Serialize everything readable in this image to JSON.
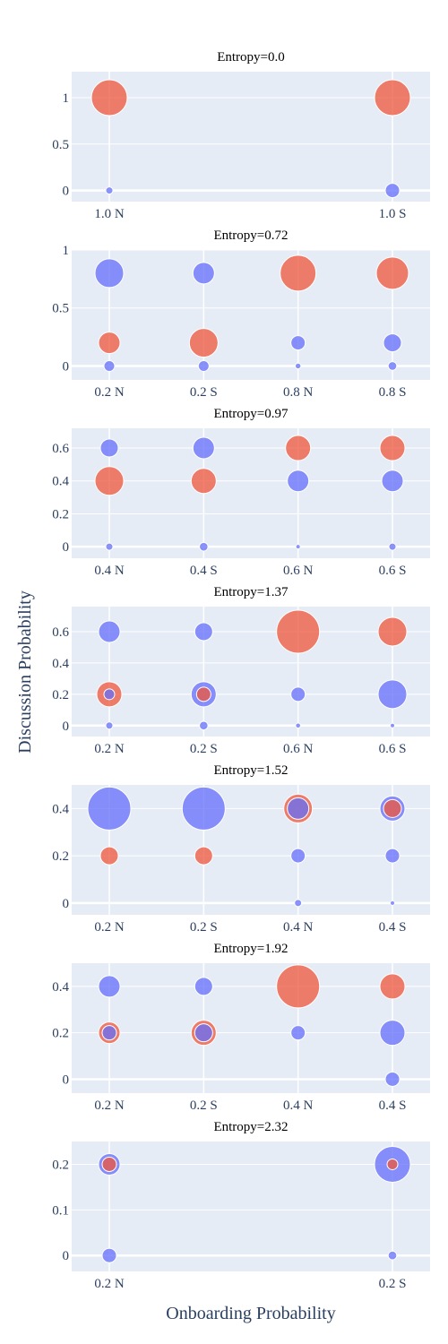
{
  "chart_data": {
    "type": "scatter",
    "xlabel": "Onboarding Probability",
    "ylabel": "Discussion Probability",
    "colors": {
      "blue": "#636efa",
      "red": "#ef553b",
      "plot_bg": "#e5ecf6",
      "grid": "#ffffff"
    },
    "grid": true,
    "legend": "none",
    "panels": [
      {
        "title": "Entropy=0.0",
        "categories": [
          "1.0 N",
          "1.0 S"
        ],
        "y_ticks": [
          "0",
          "0.5",
          "1"
        ],
        "y_tick_values": [
          0,
          0.5,
          1
        ],
        "ylim": [
          -0.12,
          1.28
        ],
        "points": [
          {
            "x": "1.0 N",
            "y": 1,
            "size": 5,
            "color": "red"
          },
          {
            "x": "1.0 N",
            "y": 0,
            "size": 1,
            "color": "blue"
          },
          {
            "x": "1.0 S",
            "y": 1,
            "size": 5,
            "color": "red"
          },
          {
            "x": "1.0 S",
            "y": 0,
            "size": 2,
            "color": "blue"
          }
        ]
      },
      {
        "title": "Entropy=0.72",
        "categories": [
          "0.2 N",
          "0.2 S",
          "0.8 N",
          "0.8 S"
        ],
        "y_ticks": [
          "0",
          "0.5",
          "1"
        ],
        "y_tick_values": [
          0,
          0.5,
          1
        ],
        "ylim": [
          -0.12,
          1.0
        ],
        "points": [
          {
            "x": "0.2 N",
            "y": 0.8,
            "size": 4,
            "color": "blue"
          },
          {
            "x": "0.2 N",
            "y": 0.2,
            "size": 3,
            "color": "red"
          },
          {
            "x": "0.2 N",
            "y": 0,
            "size": 1.5,
            "color": "blue"
          },
          {
            "x": "0.2 S",
            "y": 0.8,
            "size": 3,
            "color": "blue"
          },
          {
            "x": "0.2 S",
            "y": 0.2,
            "size": 4,
            "color": "red"
          },
          {
            "x": "0.2 S",
            "y": 0,
            "size": 1.5,
            "color": "blue"
          },
          {
            "x": "0.8 N",
            "y": 0.8,
            "size": 5,
            "color": "red"
          },
          {
            "x": "0.8 N",
            "y": 0.2,
            "size": 2,
            "color": "blue"
          },
          {
            "x": "0.8 N",
            "y": 0,
            "size": 0.8,
            "color": "blue"
          },
          {
            "x": "0.8 S",
            "y": 0.8,
            "size": 4.5,
            "color": "red"
          },
          {
            "x": "0.8 S",
            "y": 0.2,
            "size": 2.5,
            "color": "blue"
          },
          {
            "x": "0.8 S",
            "y": 0,
            "size": 1.2,
            "color": "blue"
          }
        ]
      },
      {
        "title": "Entropy=0.97",
        "categories": [
          "0.4 N",
          "0.4 S",
          "0.6 N",
          "0.6 S"
        ],
        "y_ticks": [
          "0",
          "0.2",
          "0.4",
          "0.6"
        ],
        "y_tick_values": [
          0,
          0.2,
          0.4,
          0.6
        ],
        "ylim": [
          -0.07,
          0.72
        ],
        "points": [
          {
            "x": "0.4 N",
            "y": 0.6,
            "size": 2.5,
            "color": "blue"
          },
          {
            "x": "0.4 N",
            "y": 0.4,
            "size": 4,
            "color": "red"
          },
          {
            "x": "0.4 N",
            "y": 0,
            "size": 1,
            "color": "blue"
          },
          {
            "x": "0.4 S",
            "y": 0.6,
            "size": 3,
            "color": "blue"
          },
          {
            "x": "0.4 S",
            "y": 0.4,
            "size": 3.5,
            "color": "red"
          },
          {
            "x": "0.4 S",
            "y": 0,
            "size": 1.2,
            "color": "blue"
          },
          {
            "x": "0.6 N",
            "y": 0.6,
            "size": 3.5,
            "color": "red"
          },
          {
            "x": "0.6 N",
            "y": 0.4,
            "size": 3,
            "color": "blue"
          },
          {
            "x": "0.6 N",
            "y": 0,
            "size": 0.4,
            "color": "blue"
          },
          {
            "x": "0.6 S",
            "y": 0.6,
            "size": 3.5,
            "color": "red"
          },
          {
            "x": "0.6 S",
            "y": 0.4,
            "size": 3,
            "color": "blue"
          },
          {
            "x": "0.6 S",
            "y": 0,
            "size": 1,
            "color": "blue"
          }
        ]
      },
      {
        "title": "Entropy=1.37",
        "categories": [
          "0.2 N",
          "0.2 S",
          "0.6 N",
          "0.6 S"
        ],
        "y_ticks": [
          "0",
          "0.2",
          "0.4",
          "0.6"
        ],
        "y_tick_values": [
          0,
          0.2,
          0.4,
          0.6
        ],
        "ylim": [
          -0.07,
          0.76
        ],
        "points": [
          {
            "x": "0.2 N",
            "y": 0.6,
            "size": 3,
            "color": "blue"
          },
          {
            "x": "0.2 N",
            "y": 0.2,
            "size": 3.5,
            "color": "red"
          },
          {
            "x": "0.2 N",
            "y": 0.2,
            "size": 1.5,
            "color": "blue"
          },
          {
            "x": "0.2 N",
            "y": 0,
            "size": 1,
            "color": "blue"
          },
          {
            "x": "0.2 S",
            "y": 0.6,
            "size": 2.5,
            "color": "blue"
          },
          {
            "x": "0.2 S",
            "y": 0.2,
            "size": 3.5,
            "color": "blue"
          },
          {
            "x": "0.2 S",
            "y": 0.2,
            "size": 2,
            "color": "red"
          },
          {
            "x": "0.2 S",
            "y": 0,
            "size": 1.2,
            "color": "blue"
          },
          {
            "x": "0.6 N",
            "y": 0.6,
            "size": 6,
            "color": "red"
          },
          {
            "x": "0.6 N",
            "y": 0.2,
            "size": 2,
            "color": "blue"
          },
          {
            "x": "0.6 N",
            "y": 0,
            "size": 0.7,
            "color": "blue"
          },
          {
            "x": "0.6 S",
            "y": 0.6,
            "size": 4,
            "color": "red"
          },
          {
            "x": "0.6 S",
            "y": 0.2,
            "size": 4,
            "color": "blue"
          },
          {
            "x": "0.6 S",
            "y": 0,
            "size": 0.6,
            "color": "blue"
          }
        ]
      },
      {
        "title": "Entropy=1.52",
        "categories": [
          "0.2 N",
          "0.2 S",
          "0.4 N",
          "0.4 S"
        ],
        "y_ticks": [
          "0",
          "0.2",
          "0.4"
        ],
        "y_tick_values": [
          0,
          0.2,
          0.4
        ],
        "ylim": [
          -0.05,
          0.5
        ],
        "points": [
          {
            "x": "0.2 N",
            "y": 0.4,
            "size": 6,
            "color": "blue"
          },
          {
            "x": "0.2 N",
            "y": 0.2,
            "size": 2.5,
            "color": "red"
          },
          {
            "x": "0.2 S",
            "y": 0.4,
            "size": 6,
            "color": "blue"
          },
          {
            "x": "0.2 S",
            "y": 0.2,
            "size": 2.5,
            "color": "red"
          },
          {
            "x": "0.4 N",
            "y": 0.4,
            "size": 4,
            "color": "red"
          },
          {
            "x": "0.4 N",
            "y": 0.4,
            "size": 3,
            "color": "blue"
          },
          {
            "x": "0.4 N",
            "y": 0.2,
            "size": 2,
            "color": "blue"
          },
          {
            "x": "0.4 N",
            "y": 0,
            "size": 1,
            "color": "blue"
          },
          {
            "x": "0.4 S",
            "y": 0.4,
            "size": 3.5,
            "color": "blue"
          },
          {
            "x": "0.4 S",
            "y": 0.4,
            "size": 2.5,
            "color": "red"
          },
          {
            "x": "0.4 S",
            "y": 0.2,
            "size": 2,
            "color": "blue"
          },
          {
            "x": "0.4 S",
            "y": 0,
            "size": 0.6,
            "color": "blue"
          }
        ]
      },
      {
        "title": "Entropy=1.92",
        "categories": [
          "0.2 N",
          "0.2 S",
          "0.4 N",
          "0.4 S"
        ],
        "y_ticks": [
          "0",
          "0.2",
          "0.4"
        ],
        "y_tick_values": [
          0,
          0.2,
          0.4
        ],
        "ylim": [
          -0.06,
          0.5
        ],
        "points": [
          {
            "x": "0.2 N",
            "y": 0.4,
            "size": 3,
            "color": "blue"
          },
          {
            "x": "0.2 N",
            "y": 0.2,
            "size": 3,
            "color": "red"
          },
          {
            "x": "0.2 N",
            "y": 0.2,
            "size": 2,
            "color": "blue"
          },
          {
            "x": "0.2 S",
            "y": 0.4,
            "size": 2.5,
            "color": "blue"
          },
          {
            "x": "0.2 S",
            "y": 0.2,
            "size": 3.5,
            "color": "red"
          },
          {
            "x": "0.2 S",
            "y": 0.2,
            "size": 2.5,
            "color": "blue"
          },
          {
            "x": "0.4 N",
            "y": 0.4,
            "size": 6,
            "color": "red"
          },
          {
            "x": "0.4 N",
            "y": 0.2,
            "size": 2,
            "color": "blue"
          },
          {
            "x": "0.4 S",
            "y": 0.4,
            "size": 3.5,
            "color": "red"
          },
          {
            "x": "0.4 S",
            "y": 0.2,
            "size": 3.5,
            "color": "blue"
          },
          {
            "x": "0.4 S",
            "y": 0,
            "size": 2,
            "color": "blue"
          }
        ]
      },
      {
        "title": "Entropy=2.32",
        "categories": [
          "0.2 N",
          "0.2 S"
        ],
        "y_ticks": [
          "0",
          "0.1",
          "0.2"
        ],
        "y_tick_values": [
          0,
          0.1,
          0.2
        ],
        "ylim": [
          -0.035,
          0.25
        ],
        "points": [
          {
            "x": "0.2 N",
            "y": 0.2,
            "size": 3,
            "color": "blue"
          },
          {
            "x": "0.2 N",
            "y": 0.2,
            "size": 2,
            "color": "red"
          },
          {
            "x": "0.2 N",
            "y": 0,
            "size": 2,
            "color": "blue"
          },
          {
            "x": "0.2 S",
            "y": 0.2,
            "size": 5,
            "color": "blue"
          },
          {
            "x": "0.2 S",
            "y": 0.2,
            "size": 1.5,
            "color": "red"
          },
          {
            "x": "0.2 S",
            "y": 0,
            "size": 1.2,
            "color": "blue"
          }
        ]
      }
    ]
  }
}
